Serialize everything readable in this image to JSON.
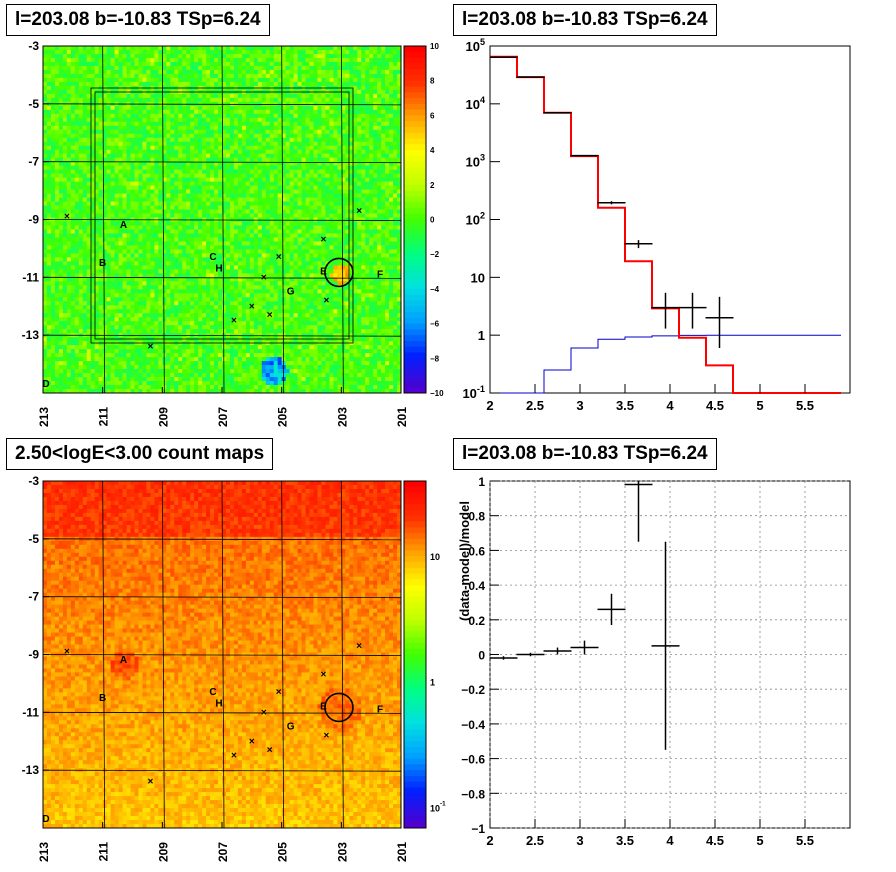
{
  "panels": {
    "top_left_title": "l=203.08 b=-10.83 TSp=6.24",
    "top_right_title": "l=203.08 b=-10.83 TSp=6.24",
    "bottom_left_title": "2.50<logE<3.00 count maps",
    "bottom_right_title": "l=203.08 b=-10.83 TSp=6.24"
  },
  "chart_data": [
    {
      "type": "heatmap",
      "panel": "residual-significance-map",
      "title": "l=203.08 b=-10.83 TSp=6.24",
      "x_ticks": [
        "213",
        "211",
        "209",
        "207",
        "205",
        "203",
        "201"
      ],
      "y_ticks": [
        "-3",
        "-5",
        "-7",
        "-9",
        "-11",
        "-13"
      ],
      "xlim": [
        213,
        201
      ],
      "ylim": [
        -3,
        -15
      ],
      "colorbar_ticks": [
        "10",
        "8",
        "6",
        "4",
        "2",
        "0",
        "−2",
        "−4",
        "−6",
        "−8",
        "−10"
      ],
      "colorbar_range": [
        -10,
        10
      ],
      "colormap": [
        "#5000d0",
        "#0020ff",
        "#00a0ff",
        "#00e0e0",
        "#00ff80",
        "#40ff00",
        "#c0ff00",
        "#ffff00",
        "#ffa000",
        "#ff3000",
        "#ff0000"
      ],
      "background_value": 0,
      "sources": [
        {
          "label": "A",
          "l": 210.3,
          "b": -9.3
        },
        {
          "label": "B",
          "l": 211.0,
          "b": -10.6
        },
        {
          "label": "C",
          "l": 207.3,
          "b": -10.4
        },
        {
          "label": "H",
          "l": 207.1,
          "b": -10.8
        },
        {
          "label": "G",
          "l": 204.7,
          "b": -11.6
        },
        {
          "label": "E",
          "l": 203.6,
          "b": -10.9
        },
        {
          "label": "F",
          "l": 201.7,
          "b": -11.0
        },
        {
          "label": "D",
          "l": 212.9,
          "b": -14.8
        }
      ],
      "candidate": {
        "l": 203.08,
        "b": -10.83
      }
    },
    {
      "type": "line",
      "panel": "counts-spectrum",
      "title": "l=203.08 b=-10.83 TSp=6.24",
      "xlim": [
        2,
        6
      ],
      "x_ticks": [
        "2",
        "2.5",
        "3",
        "3.5",
        "4",
        "4.5",
        "5",
        "5.5"
      ],
      "yscale": "log",
      "ylim": [
        0.1,
        100000
      ],
      "y_ticks": [
        "10^-1",
        "1",
        "10",
        "10^2",
        "10^3",
        "10^4",
        "10^5"
      ],
      "model_total_color": "#ff0000",
      "model_source_color": "#0000cc",
      "bin_edges": [
        2.0,
        2.3,
        2.6,
        2.9,
        3.2,
        3.5,
        3.8,
        4.1,
        4.4,
        4.7,
        5.0,
        5.3,
        5.6,
        5.9
      ],
      "model_total": [
        65000,
        29000,
        7000,
        1250,
        160,
        19,
        2.9,
        0.9,
        0.3,
        0.1,
        0.1,
        0.1,
        0.1
      ],
      "model_source": [
        0.02,
        0.06,
        0.25,
        0.6,
        0.85,
        0.93,
        0.97,
        0.99,
        1.0,
        1.0,
        1.0,
        1.0,
        1.0
      ],
      "data": [
        {
          "x": 2.15,
          "y": 64000,
          "ylo": 63700,
          "yhi": 64300
        },
        {
          "x": 2.45,
          "y": 29000,
          "ylo": 28800,
          "yhi": 29200
        },
        {
          "x": 2.75,
          "y": 7000,
          "ylo": 6900,
          "yhi": 7100
        },
        {
          "x": 3.05,
          "y": 1270,
          "ylo": 1240,
          "yhi": 1300
        },
        {
          "x": 3.35,
          "y": 195,
          "ylo": 183,
          "yhi": 207
        },
        {
          "x": 3.65,
          "y": 38,
          "ylo": 32,
          "yhi": 44
        },
        {
          "x": 3.95,
          "y": 3,
          "ylo": 1.3,
          "yhi": 5.4
        },
        {
          "x": 4.25,
          "y": 3,
          "ylo": 1.3,
          "yhi": 5.4
        },
        {
          "x": 4.55,
          "y": 2,
          "ylo": 0.6,
          "yhi": 4.6
        }
      ]
    },
    {
      "type": "heatmap",
      "panel": "count-map",
      "title": "2.50<logE<3.00 count maps",
      "x_ticks": [
        "213",
        "211",
        "209",
        "207",
        "205",
        "203",
        "201"
      ],
      "y_ticks": [
        "-3",
        "-5",
        "-7",
        "-9",
        "-11",
        "-13"
      ],
      "xlim": [
        213,
        201
      ],
      "ylim": [
        -3,
        -15
      ],
      "colorbar_ticks": [
        "10",
        "1",
        "10^-1"
      ],
      "colorbar_scale": "log",
      "colorbar_range": [
        0.07,
        40
      ],
      "colormap": [
        "#5000d0",
        "#0020ff",
        "#00a0ff",
        "#00e0e0",
        "#00ff80",
        "#40ff00",
        "#c0ff00",
        "#ffff00",
        "#ffa000",
        "#ff3000",
        "#ff0000"
      ],
      "sources": [
        {
          "label": "A",
          "l": 210.3,
          "b": -9.3
        },
        {
          "label": "B",
          "l": 211.0,
          "b": -10.6
        },
        {
          "label": "C",
          "l": 207.3,
          "b": -10.4
        },
        {
          "label": "H",
          "l": 207.1,
          "b": -10.8
        },
        {
          "label": "G",
          "l": 204.7,
          "b": -11.6
        },
        {
          "label": "E",
          "l": 203.6,
          "b": -10.9
        },
        {
          "label": "F",
          "l": 201.7,
          "b": -11.0
        },
        {
          "label": "D",
          "l": 212.9,
          "b": -14.8
        }
      ],
      "candidate": {
        "l": 203.08,
        "b": -10.83
      }
    },
    {
      "type": "scatter",
      "panel": "fractional-residuals",
      "title": "l=203.08 b=-10.83 TSp=6.24",
      "ylabel": "(data-model)/model",
      "xlim": [
        2,
        6
      ],
      "x_ticks": [
        "2",
        "2.5",
        "3",
        "3.5",
        "4",
        "4.5",
        "5",
        "5.5"
      ],
      "ylim": [
        -1,
        1
      ],
      "y_ticks": [
        "1",
        "0.8",
        "0.6",
        "0.4",
        "0.2",
        "0",
        "−0.2",
        "−0.4",
        "−0.6",
        "−0.8",
        "−1"
      ],
      "grid": true,
      "data": [
        {
          "x": 2.15,
          "y": -0.02,
          "ylo": -0.03,
          "yhi": -0.01
        },
        {
          "x": 2.45,
          "y": 0.0,
          "ylo": -0.01,
          "yhi": 0.01
        },
        {
          "x": 2.75,
          "y": 0.02,
          "ylo": 0.0,
          "yhi": 0.04
        },
        {
          "x": 3.05,
          "y": 0.04,
          "ylo": 0.0,
          "yhi": 0.08
        },
        {
          "x": 3.35,
          "y": 0.26,
          "ylo": 0.17,
          "yhi": 0.35
        },
        {
          "x": 3.65,
          "y": 0.98,
          "ylo": 0.65,
          "yhi": 1.0
        },
        {
          "x": 3.95,
          "y": 0.05,
          "ylo": -0.55,
          "yhi": 0.65
        }
      ]
    }
  ]
}
